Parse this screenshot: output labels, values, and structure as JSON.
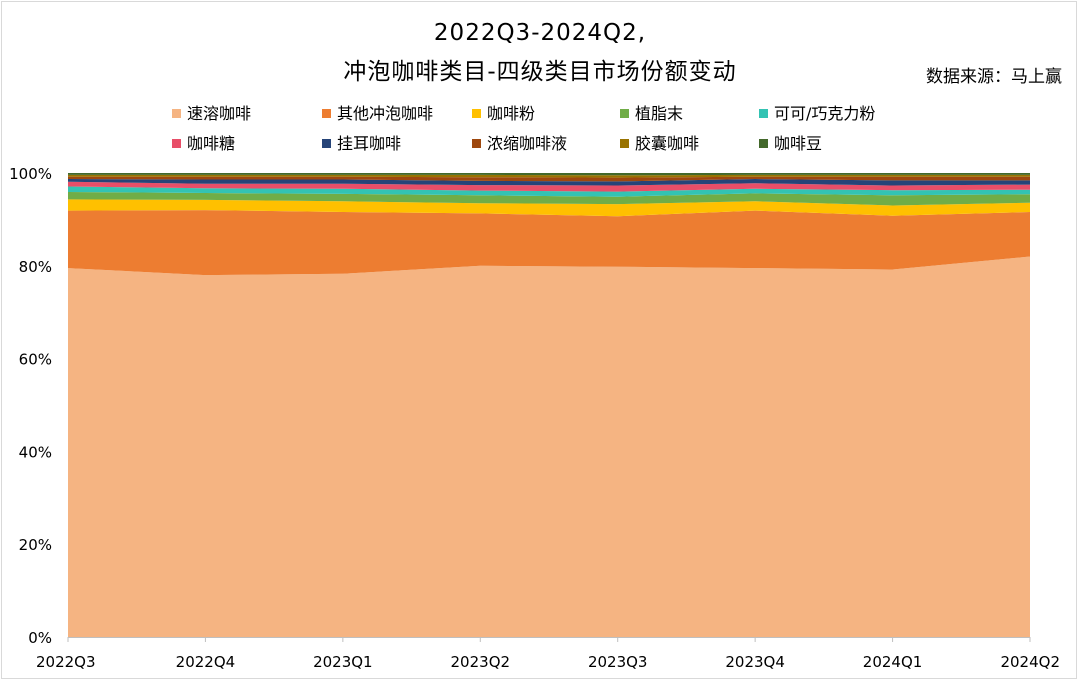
{
  "header": {
    "title_line1": "2022Q3-2024Q2,",
    "title_line2": "冲泡咖啡类目-四级类目市场份额变动",
    "source": "数据来源：马上赢"
  },
  "chart_data": {
    "type": "area",
    "stacked": true,
    "title": "2022Q3-2024Q2, 冲泡咖啡类目-四级类目市场份额变动",
    "categories": [
      "2022Q3",
      "2022Q4",
      "2023Q1",
      "2023Q2",
      "2023Q3",
      "2023Q4",
      "2024Q1",
      "2024Q2"
    ],
    "ylim": [
      0,
      100
    ],
    "yticks": [
      "0%",
      "20%",
      "40%",
      "60%",
      "80%",
      "100%"
    ],
    "legend_position": "top",
    "series": [
      {
        "name": "速溶咖啡",
        "color": "#F5B482",
        "values": [
          79.5,
          78.0,
          78.3,
          80.0,
          79.8,
          79.5,
          79.2,
          82.0
        ]
      },
      {
        "name": "其他冲泡咖啡",
        "color": "#ED7D31",
        "values": [
          12.4,
          14.0,
          13.3,
          11.3,
          10.9,
          12.4,
          11.6,
          9.6
        ]
      },
      {
        "name": "咖啡粉",
        "color": "#FFC000",
        "values": [
          2.4,
          2.2,
          2.3,
          2.2,
          2.6,
          2.0,
          2.2,
          2.0
        ]
      },
      {
        "name": "植脂末",
        "color": "#70AD47",
        "values": [
          1.6,
          1.5,
          1.6,
          1.7,
          1.6,
          1.7,
          2.2,
          1.8
        ]
      },
      {
        "name": "可可/巧克力粉",
        "color": "#33C3B3",
        "values": [
          1.2,
          1.0,
          1.1,
          1.0,
          1.1,
          1.0,
          1.1,
          1.0
        ]
      },
      {
        "name": "咖啡糖",
        "color": "#E84E68",
        "values": [
          1.0,
          1.0,
          1.1,
          1.2,
          1.3,
          1.2,
          1.0,
          1.1
        ]
      },
      {
        "name": "挂耳咖啡",
        "color": "#264478",
        "values": [
          0.6,
          0.9,
          0.9,
          0.9,
          0.9,
          0.9,
          1.1,
          0.9
        ]
      },
      {
        "name": "浓缩咖啡液",
        "color": "#9E480E",
        "values": [
          0.5,
          0.6,
          0.6,
          0.8,
          0.8,
          0.5,
          0.8,
          0.8
        ]
      },
      {
        "name": "胶囊咖啡",
        "color": "#997300",
        "values": [
          0.4,
          0.4,
          0.4,
          0.5,
          0.5,
          0.4,
          0.4,
          0.4
        ]
      },
      {
        "name": "咖啡豆",
        "color": "#43682B",
        "values": [
          0.4,
          0.4,
          0.4,
          0.4,
          0.5,
          0.4,
          0.4,
          0.4
        ]
      }
    ]
  }
}
